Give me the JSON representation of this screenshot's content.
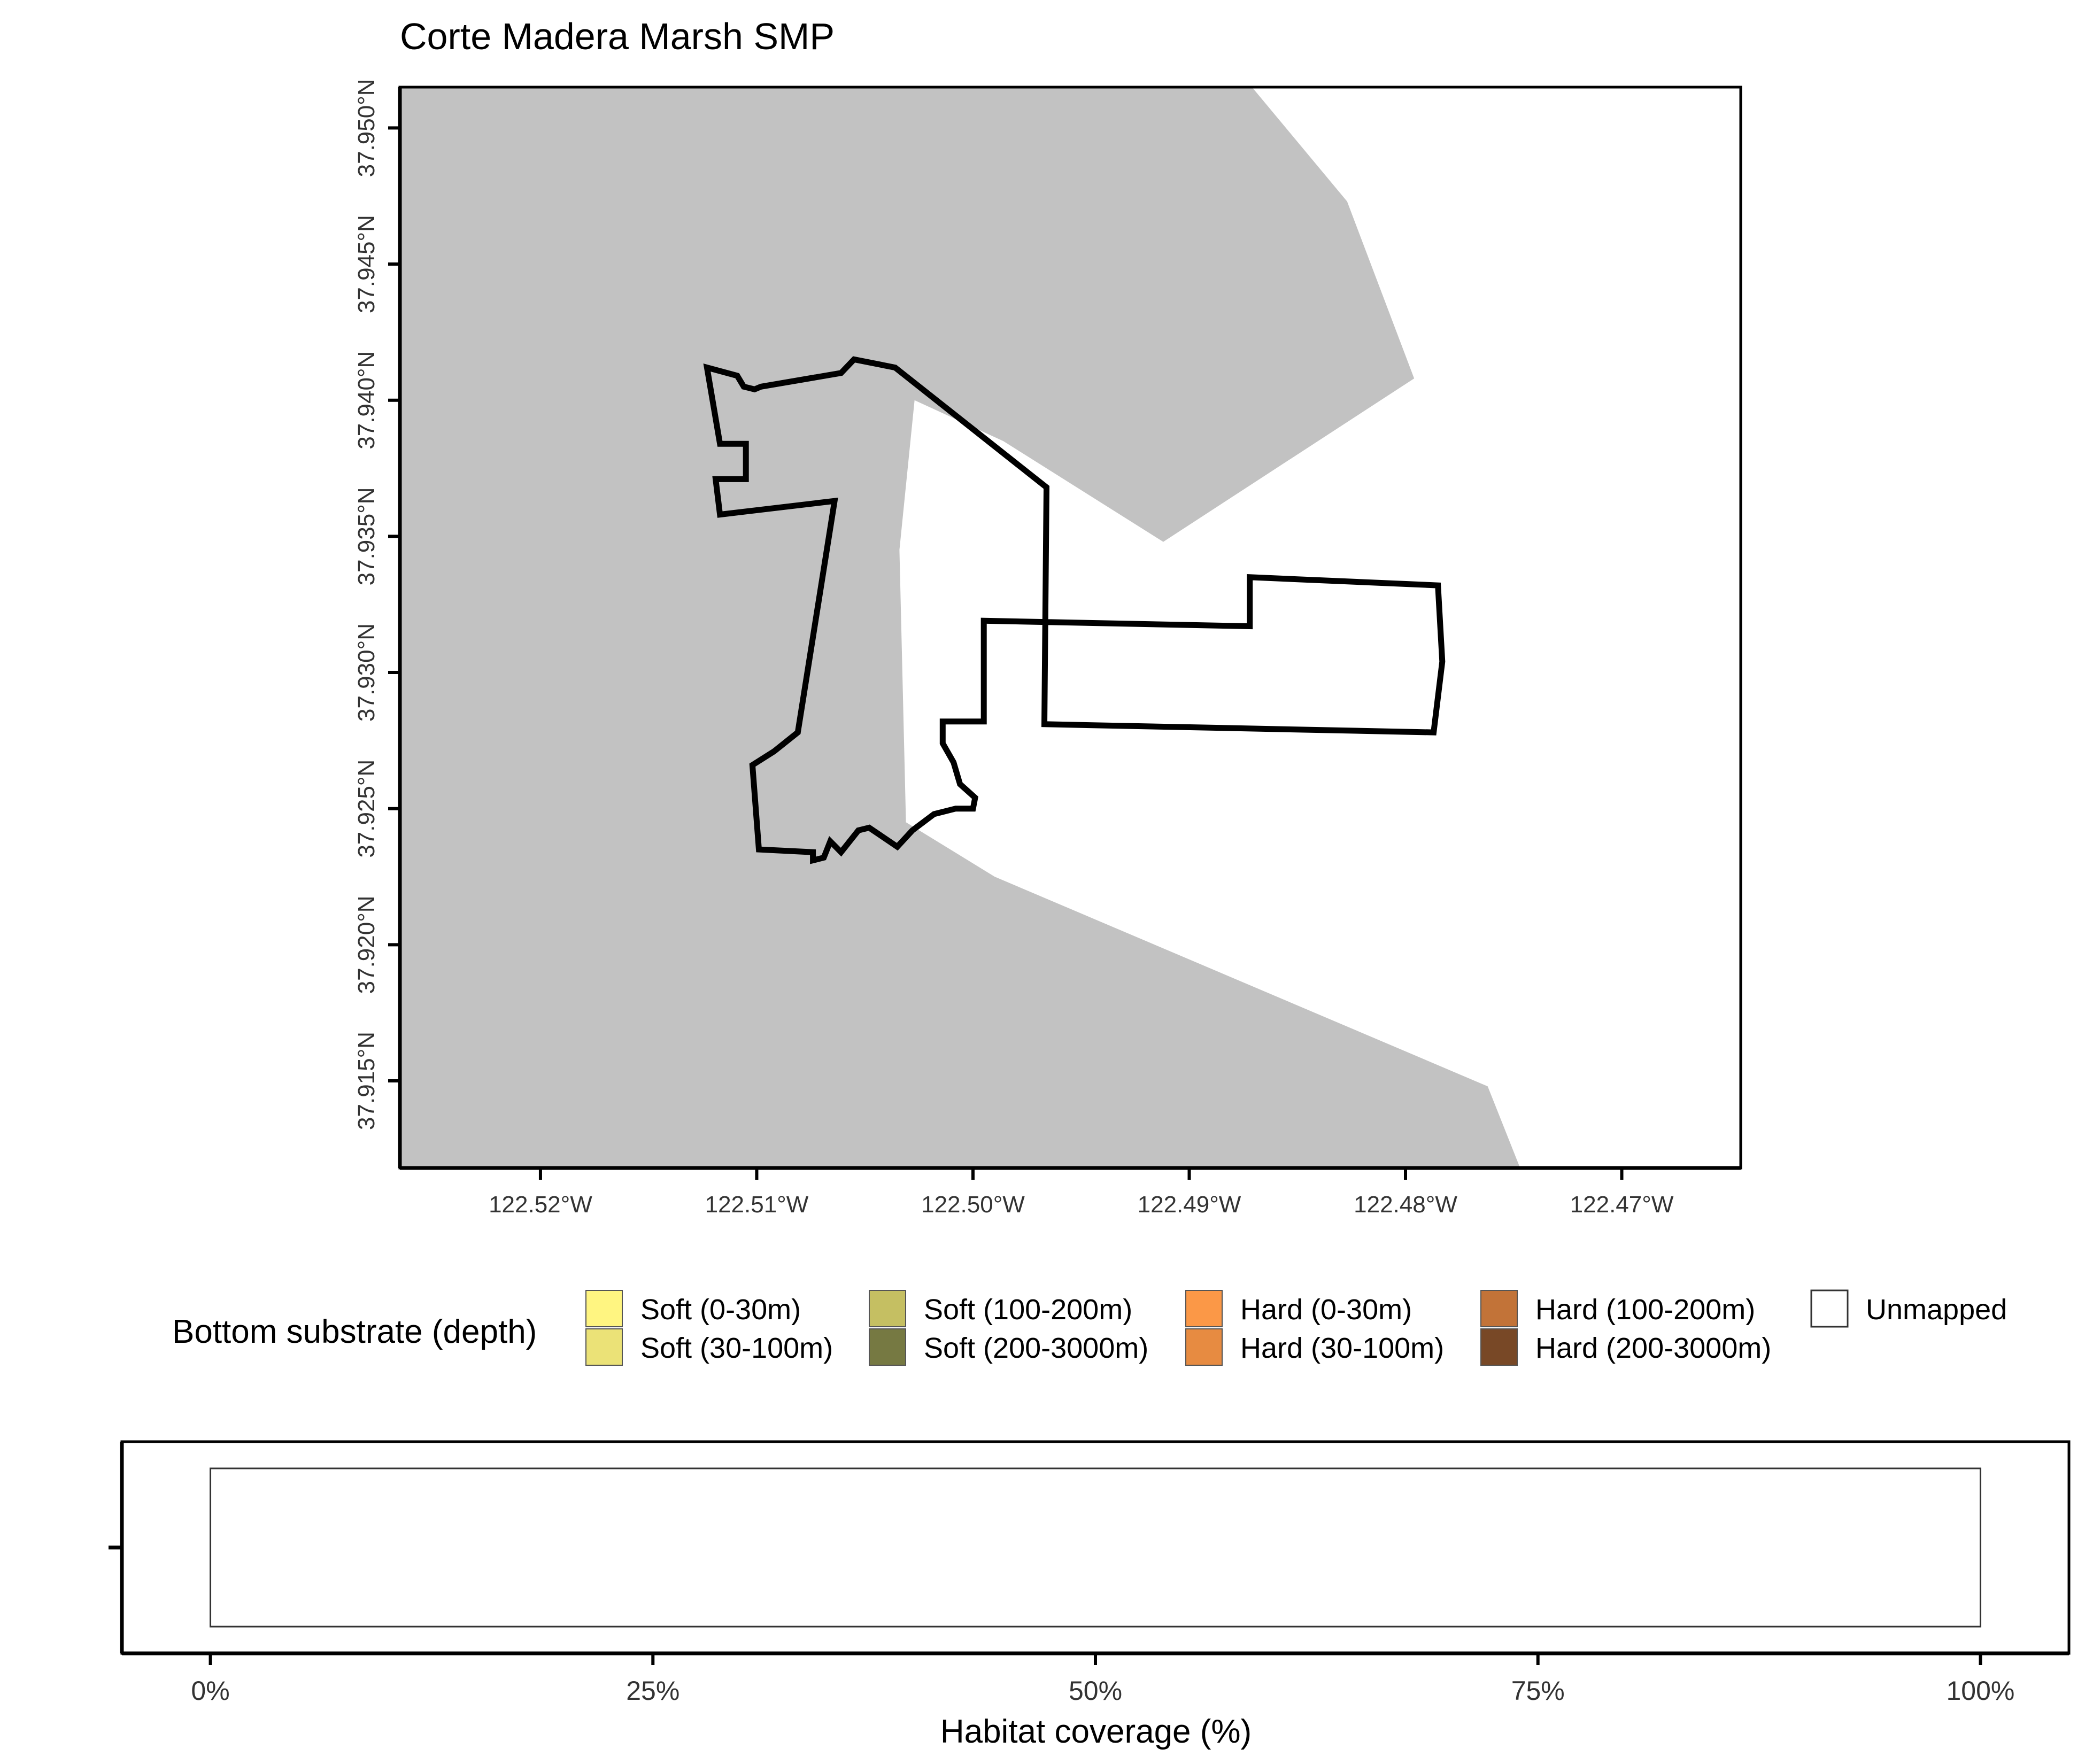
{
  "title": "Corte Madera Marsh SMP",
  "map": {
    "lon_range": [
      -122.5265,
      -122.4645
    ],
    "lat_range": [
      37.9118,
      37.9515
    ],
    "x_ticks": [
      {
        "value": -122.52,
        "label": "122.52°W"
      },
      {
        "value": -122.51,
        "label": "122.51°W"
      },
      {
        "value": -122.5,
        "label": "122.50°W"
      },
      {
        "value": -122.49,
        "label": "122.49°W"
      },
      {
        "value": -122.48,
        "label": "122.48°W"
      },
      {
        "value": -122.47,
        "label": "122.47°W"
      }
    ],
    "y_ticks": [
      {
        "value": 37.915,
        "label": "37.915°N"
      },
      {
        "value": 37.92,
        "label": "37.920°N"
      },
      {
        "value": 37.925,
        "label": "37.925°N"
      },
      {
        "value": 37.93,
        "label": "37.930°N"
      },
      {
        "value": 37.935,
        "label": "37.935°N"
      },
      {
        "value": 37.94,
        "label": "37.940°N"
      },
      {
        "value": 37.945,
        "label": "37.945°N"
      },
      {
        "value": 37.95,
        "label": "37.950°N"
      }
    ],
    "land_color": "#c2c2c2",
    "water_color": "#ffffff",
    "boundary_color": "#000000",
    "land_polygon": [
      [
        -122.5265,
        37.9515
      ],
      [
        -122.4871,
        37.9515
      ],
      [
        -122.4827,
        37.9473
      ],
      [
        -122.4796,
        37.9408
      ],
      [
        -122.4912,
        37.9348
      ],
      [
        -122.4986,
        37.9385
      ],
      [
        -122.5027,
        37.94
      ],
      [
        -122.5034,
        37.9345
      ],
      [
        -122.5031,
        37.9245
      ],
      [
        -122.499,
        37.9225
      ],
      [
        -122.4762,
        37.9148
      ],
      [
        -122.4747,
        37.9118
      ],
      [
        -122.5265,
        37.9118
      ]
    ],
    "boundary_polygon": [
      [
        -122.5123,
        37.9412
      ],
      [
        -122.5109,
        37.9409
      ],
      [
        -122.5106,
        37.9405
      ],
      [
        -122.5101,
        37.9404
      ],
      [
        -122.5098,
        37.9405
      ],
      [
        -122.5061,
        37.941
      ],
      [
        -122.5055,
        37.9415
      ],
      [
        -122.5036,
        37.9412
      ],
      [
        -122.4966,
        37.9368
      ],
      [
        -122.4967,
        37.9281
      ],
      [
        -122.4787,
        37.9278
      ],
      [
        -122.4783,
        37.9304
      ],
      [
        -122.4785,
        37.9332
      ],
      [
        -122.4872,
        37.9335
      ],
      [
        -122.4872,
        37.9317
      ],
      [
        -122.4995,
        37.9319
      ],
      [
        -122.4995,
        37.9282
      ],
      [
        -122.5014,
        37.9282
      ],
      [
        -122.5014,
        37.9274
      ],
      [
        -122.5009,
        37.9267
      ],
      [
        -122.5006,
        37.9259
      ],
      [
        -122.4999,
        37.9254
      ],
      [
        -122.5,
        37.925
      ],
      [
        -122.5008,
        37.925
      ],
      [
        -122.5018,
        37.9248
      ],
      [
        -122.5028,
        37.9242
      ],
      [
        -122.5035,
        37.9236
      ],
      [
        -122.5048,
        37.9243
      ],
      [
        -122.5053,
        37.9242
      ],
      [
        -122.5061,
        37.9234
      ],
      [
        -122.5066,
        37.9238
      ],
      [
        -122.5069,
        37.9232
      ],
      [
        -122.5074,
        37.9231
      ],
      [
        -122.5074,
        37.9234
      ],
      [
        -122.5099,
        37.9235
      ],
      [
        -122.5102,
        37.9266
      ],
      [
        -122.5092,
        37.9271
      ],
      [
        -122.5081,
        37.9278
      ],
      [
        -122.5064,
        37.9363
      ],
      [
        -122.5117,
        37.9358
      ],
      [
        -122.5119,
        37.9371
      ],
      [
        -122.5105,
        37.9371
      ],
      [
        -122.5105,
        37.9384
      ],
      [
        -122.5117,
        37.9384
      ]
    ]
  },
  "legend": {
    "title": "Bottom substrate (depth)",
    "items": [
      {
        "label": "Soft (0-30m)",
        "color": "#fff581"
      },
      {
        "label": "Soft (30-100m)",
        "color": "#ebe277"
      },
      {
        "label": "Soft (100-200m)",
        "color": "#c5bf62"
      },
      {
        "label": "Soft (200-3000m)",
        "color": "#767942"
      },
      {
        "label": "Hard (0-30m)",
        "color": "#fb9847"
      },
      {
        "label": "Hard (30-100m)",
        "color": "#e78b41"
      },
      {
        "label": "Hard (100-200m)",
        "color": "#c27338"
      },
      {
        "label": "Hard (200-3000m)",
        "color": "#784826"
      },
      {
        "label": "Unmapped",
        "color": "#ffffff"
      }
    ]
  },
  "chart_data": {
    "type": "bar",
    "orientation": "horizontal",
    "stacked": true,
    "title": "",
    "xlabel": "Habitat coverage (%)",
    "ylabel": "",
    "xlim": [
      -5,
      105
    ],
    "x_ticks": [
      {
        "value": 0,
        "label": "0%"
      },
      {
        "value": 25,
        "label": "25%"
      },
      {
        "value": 50,
        "label": "50%"
      },
      {
        "value": 75,
        "label": "75%"
      },
      {
        "value": 100,
        "label": "100%"
      }
    ],
    "categories": [
      ""
    ],
    "series": [
      {
        "name": "Unmapped",
        "values": [
          100
        ],
        "color": "#ffffff"
      }
    ]
  }
}
